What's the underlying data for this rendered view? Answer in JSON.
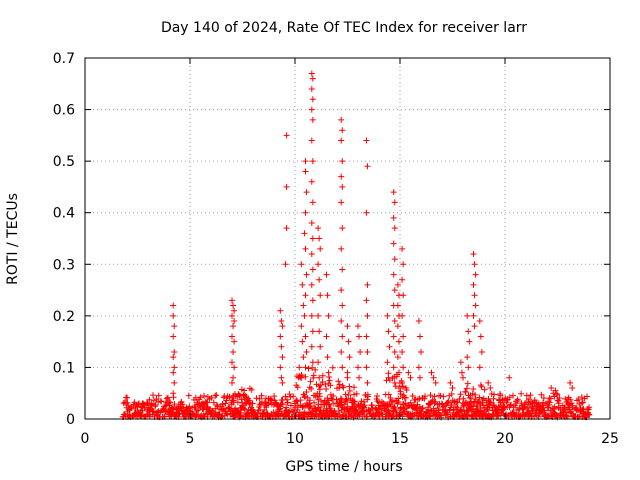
{
  "chart_data": {
    "type": "scatter",
    "title": "Day 140 of 2024, Rate Of TEC Index for receiver larr",
    "xlabel": "GPS time / hours",
    "ylabel": "ROTI / TECUs",
    "xlim": [
      0,
      25
    ],
    "ylim": [
      0,
      0.7
    ],
    "x_ticks": [
      0,
      5,
      10,
      15,
      20,
      25
    ],
    "x_tick_labels": [
      "0",
      "5",
      "10",
      "15",
      "20",
      "25"
    ],
    "y_ticks": [
      0,
      0.1,
      0.2,
      0.3,
      0.4,
      0.5,
      0.6,
      0.7
    ],
    "y_tick_labels": [
      "0",
      "0.1",
      "0.2",
      "0.3",
      "0.4",
      "0.5",
      "0.6",
      "0.7"
    ],
    "grid": true,
    "marker": "+",
    "marker_color": "#ff0000",
    "series": [
      {
        "name": "ROTI",
        "points": [
          [
            4.2,
            0.22
          ],
          [
            4.2,
            0.2
          ],
          [
            4.25,
            0.18
          ],
          [
            4.2,
            0.16
          ],
          [
            4.25,
            0.13
          ],
          [
            4.2,
            0.12
          ],
          [
            4.25,
            0.1
          ],
          [
            4.2,
            0.09
          ],
          [
            4.25,
            0.07
          ],
          [
            4.2,
            0.05
          ],
          [
            7.0,
            0.23
          ],
          [
            7.05,
            0.22
          ],
          [
            7.1,
            0.21
          ],
          [
            7.0,
            0.2
          ],
          [
            7.1,
            0.19
          ],
          [
            7.05,
            0.18
          ],
          [
            7.0,
            0.16
          ],
          [
            7.1,
            0.15
          ],
          [
            7.05,
            0.13
          ],
          [
            7.0,
            0.11
          ],
          [
            7.1,
            0.1
          ],
          [
            7.05,
            0.08
          ],
          [
            7.0,
            0.07
          ],
          [
            9.3,
            0.21
          ],
          [
            9.35,
            0.19
          ],
          [
            9.4,
            0.18
          ],
          [
            9.3,
            0.16
          ],
          [
            9.35,
            0.14
          ],
          [
            9.4,
            0.12
          ],
          [
            9.3,
            0.1
          ],
          [
            9.35,
            0.08
          ],
          [
            9.4,
            0.07
          ],
          [
            9.6,
            0.55
          ],
          [
            9.6,
            0.45
          ],
          [
            9.6,
            0.37
          ],
          [
            9.55,
            0.3
          ],
          [
            10.3,
            0.3
          ],
          [
            10.35,
            0.26
          ],
          [
            10.4,
            0.22
          ],
          [
            10.3,
            0.18
          ],
          [
            10.35,
            0.15
          ],
          [
            10.4,
            0.12
          ],
          [
            10.2,
            0.1
          ],
          [
            10.3,
            0.08
          ],
          [
            10.5,
            0.5
          ],
          [
            10.5,
            0.48
          ],
          [
            10.55,
            0.44
          ],
          [
            10.5,
            0.4
          ],
          [
            10.45,
            0.36
          ],
          [
            10.5,
            0.33
          ],
          [
            10.55,
            0.28
          ],
          [
            10.5,
            0.24
          ],
          [
            10.45,
            0.2
          ],
          [
            10.5,
            0.16
          ],
          [
            10.55,
            0.13
          ],
          [
            10.5,
            0.1
          ],
          [
            10.8,
            0.67
          ],
          [
            10.85,
            0.66
          ],
          [
            10.8,
            0.64
          ],
          [
            10.85,
            0.62
          ],
          [
            10.8,
            0.6
          ],
          [
            10.85,
            0.58
          ],
          [
            10.8,
            0.54
          ],
          [
            10.85,
            0.5
          ],
          [
            10.8,
            0.46
          ],
          [
            10.85,
            0.42
          ],
          [
            10.8,
            0.38
          ],
          [
            10.85,
            0.35
          ],
          [
            10.8,
            0.32
          ],
          [
            10.85,
            0.29
          ],
          [
            10.8,
            0.26
          ],
          [
            10.85,
            0.23
          ],
          [
            10.8,
            0.2
          ],
          [
            10.85,
            0.17
          ],
          [
            10.8,
            0.14
          ],
          [
            10.85,
            0.11
          ],
          [
            11.1,
            0.37
          ],
          [
            11.15,
            0.35
          ],
          [
            11.2,
            0.33
          ],
          [
            11.1,
            0.3
          ],
          [
            11.15,
            0.27
          ],
          [
            11.2,
            0.24
          ],
          [
            11.1,
            0.2
          ],
          [
            11.15,
            0.17
          ],
          [
            11.2,
            0.14
          ],
          [
            11.1,
            0.11
          ],
          [
            11.15,
            0.08
          ],
          [
            11.5,
            0.28
          ],
          [
            11.55,
            0.24
          ],
          [
            11.6,
            0.2
          ],
          [
            11.5,
            0.16
          ],
          [
            11.55,
            0.12
          ],
          [
            11.6,
            0.09
          ],
          [
            12.2,
            0.58
          ],
          [
            12.25,
            0.56
          ],
          [
            12.2,
            0.54
          ],
          [
            12.25,
            0.5
          ],
          [
            12.2,
            0.47
          ],
          [
            12.25,
            0.45
          ],
          [
            12.2,
            0.42
          ],
          [
            12.25,
            0.37
          ],
          [
            12.2,
            0.33
          ],
          [
            12.25,
            0.29
          ],
          [
            12.2,
            0.25
          ],
          [
            12.25,
            0.22
          ],
          [
            12.2,
            0.19
          ],
          [
            12.25,
            0.16
          ],
          [
            12.2,
            0.13
          ],
          [
            12.25,
            0.1
          ],
          [
            12.5,
            0.18
          ],
          [
            12.55,
            0.15
          ],
          [
            12.6,
            0.12
          ],
          [
            12.5,
            0.09
          ],
          [
            13.0,
            0.18
          ],
          [
            13.05,
            0.16
          ],
          [
            13.1,
            0.13
          ],
          [
            13.0,
            0.1
          ],
          [
            13.05,
            0.08
          ],
          [
            13.4,
            0.54
          ],
          [
            13.45,
            0.49
          ],
          [
            13.4,
            0.4
          ],
          [
            13.45,
            0.26
          ],
          [
            13.4,
            0.23
          ],
          [
            13.45,
            0.2
          ],
          [
            13.4,
            0.16
          ],
          [
            13.45,
            0.13
          ],
          [
            13.4,
            0.1
          ],
          [
            13.45,
            0.07
          ],
          [
            14.4,
            0.2
          ],
          [
            14.45,
            0.17
          ],
          [
            14.5,
            0.14
          ],
          [
            14.4,
            0.11
          ],
          [
            14.45,
            0.08
          ],
          [
            14.7,
            0.44
          ],
          [
            14.75,
            0.42
          ],
          [
            14.7,
            0.39
          ],
          [
            14.75,
            0.37
          ],
          [
            14.7,
            0.34
          ],
          [
            14.75,
            0.31
          ],
          [
            14.7,
            0.28
          ],
          [
            14.75,
            0.25
          ],
          [
            14.7,
            0.22
          ],
          [
            14.75,
            0.19
          ],
          [
            14.7,
            0.16
          ],
          [
            14.75,
            0.13
          ],
          [
            14.7,
            0.1
          ],
          [
            14.75,
            0.07
          ],
          [
            14.9,
            0.26
          ],
          [
            14.95,
            0.24
          ],
          [
            14.9,
            0.22
          ],
          [
            14.95,
            0.2
          ],
          [
            14.9,
            0.18
          ],
          [
            14.95,
            0.15
          ],
          [
            14.9,
            0.12
          ],
          [
            14.95,
            0.09
          ],
          [
            15.1,
            0.33
          ],
          [
            15.15,
            0.3
          ],
          [
            15.1,
            0.27
          ],
          [
            15.15,
            0.24
          ],
          [
            15.1,
            0.2
          ],
          [
            15.15,
            0.16
          ],
          [
            15.1,
            0.13
          ],
          [
            15.15,
            0.1
          ],
          [
            15.1,
            0.07
          ],
          [
            15.4,
            0.09
          ],
          [
            15.5,
            0.08
          ],
          [
            15.9,
            0.19
          ],
          [
            15.95,
            0.16
          ],
          [
            16.0,
            0.13
          ],
          [
            15.9,
            0.1
          ],
          [
            15.95,
            0.08
          ],
          [
            16.5,
            0.09
          ],
          [
            16.6,
            0.08
          ],
          [
            16.7,
            0.07
          ],
          [
            17.4,
            0.07
          ],
          [
            17.5,
            0.06
          ],
          [
            17.9,
            0.11
          ],
          [
            17.95,
            0.09
          ],
          [
            18.0,
            0.08
          ],
          [
            18.2,
            0.2
          ],
          [
            18.25,
            0.17
          ],
          [
            18.3,
            0.15
          ],
          [
            18.2,
            0.12
          ],
          [
            18.25,
            0.1
          ],
          [
            18.5,
            0.32
          ],
          [
            18.55,
            0.3
          ],
          [
            18.6,
            0.28
          ],
          [
            18.5,
            0.26
          ],
          [
            18.55,
            0.24
          ],
          [
            18.6,
            0.22
          ],
          [
            18.5,
            0.2
          ],
          [
            18.55,
            0.18
          ],
          [
            18.8,
            0.19
          ],
          [
            18.85,
            0.16
          ],
          [
            18.9,
            0.13
          ],
          [
            18.8,
            0.1
          ],
          [
            19.2,
            0.07
          ],
          [
            19.3,
            0.06
          ],
          [
            20.2,
            0.08
          ],
          [
            22.2,
            0.06
          ],
          [
            22.3,
            0.05
          ],
          [
            22.4,
            0.055
          ],
          [
            23.1,
            0.07
          ],
          [
            23.2,
            0.06
          ]
        ]
      }
    ],
    "baseline_band": {
      "x_range": [
        1.8,
        24.0
      ],
      "y_range": [
        0.0,
        0.045
      ]
    }
  }
}
